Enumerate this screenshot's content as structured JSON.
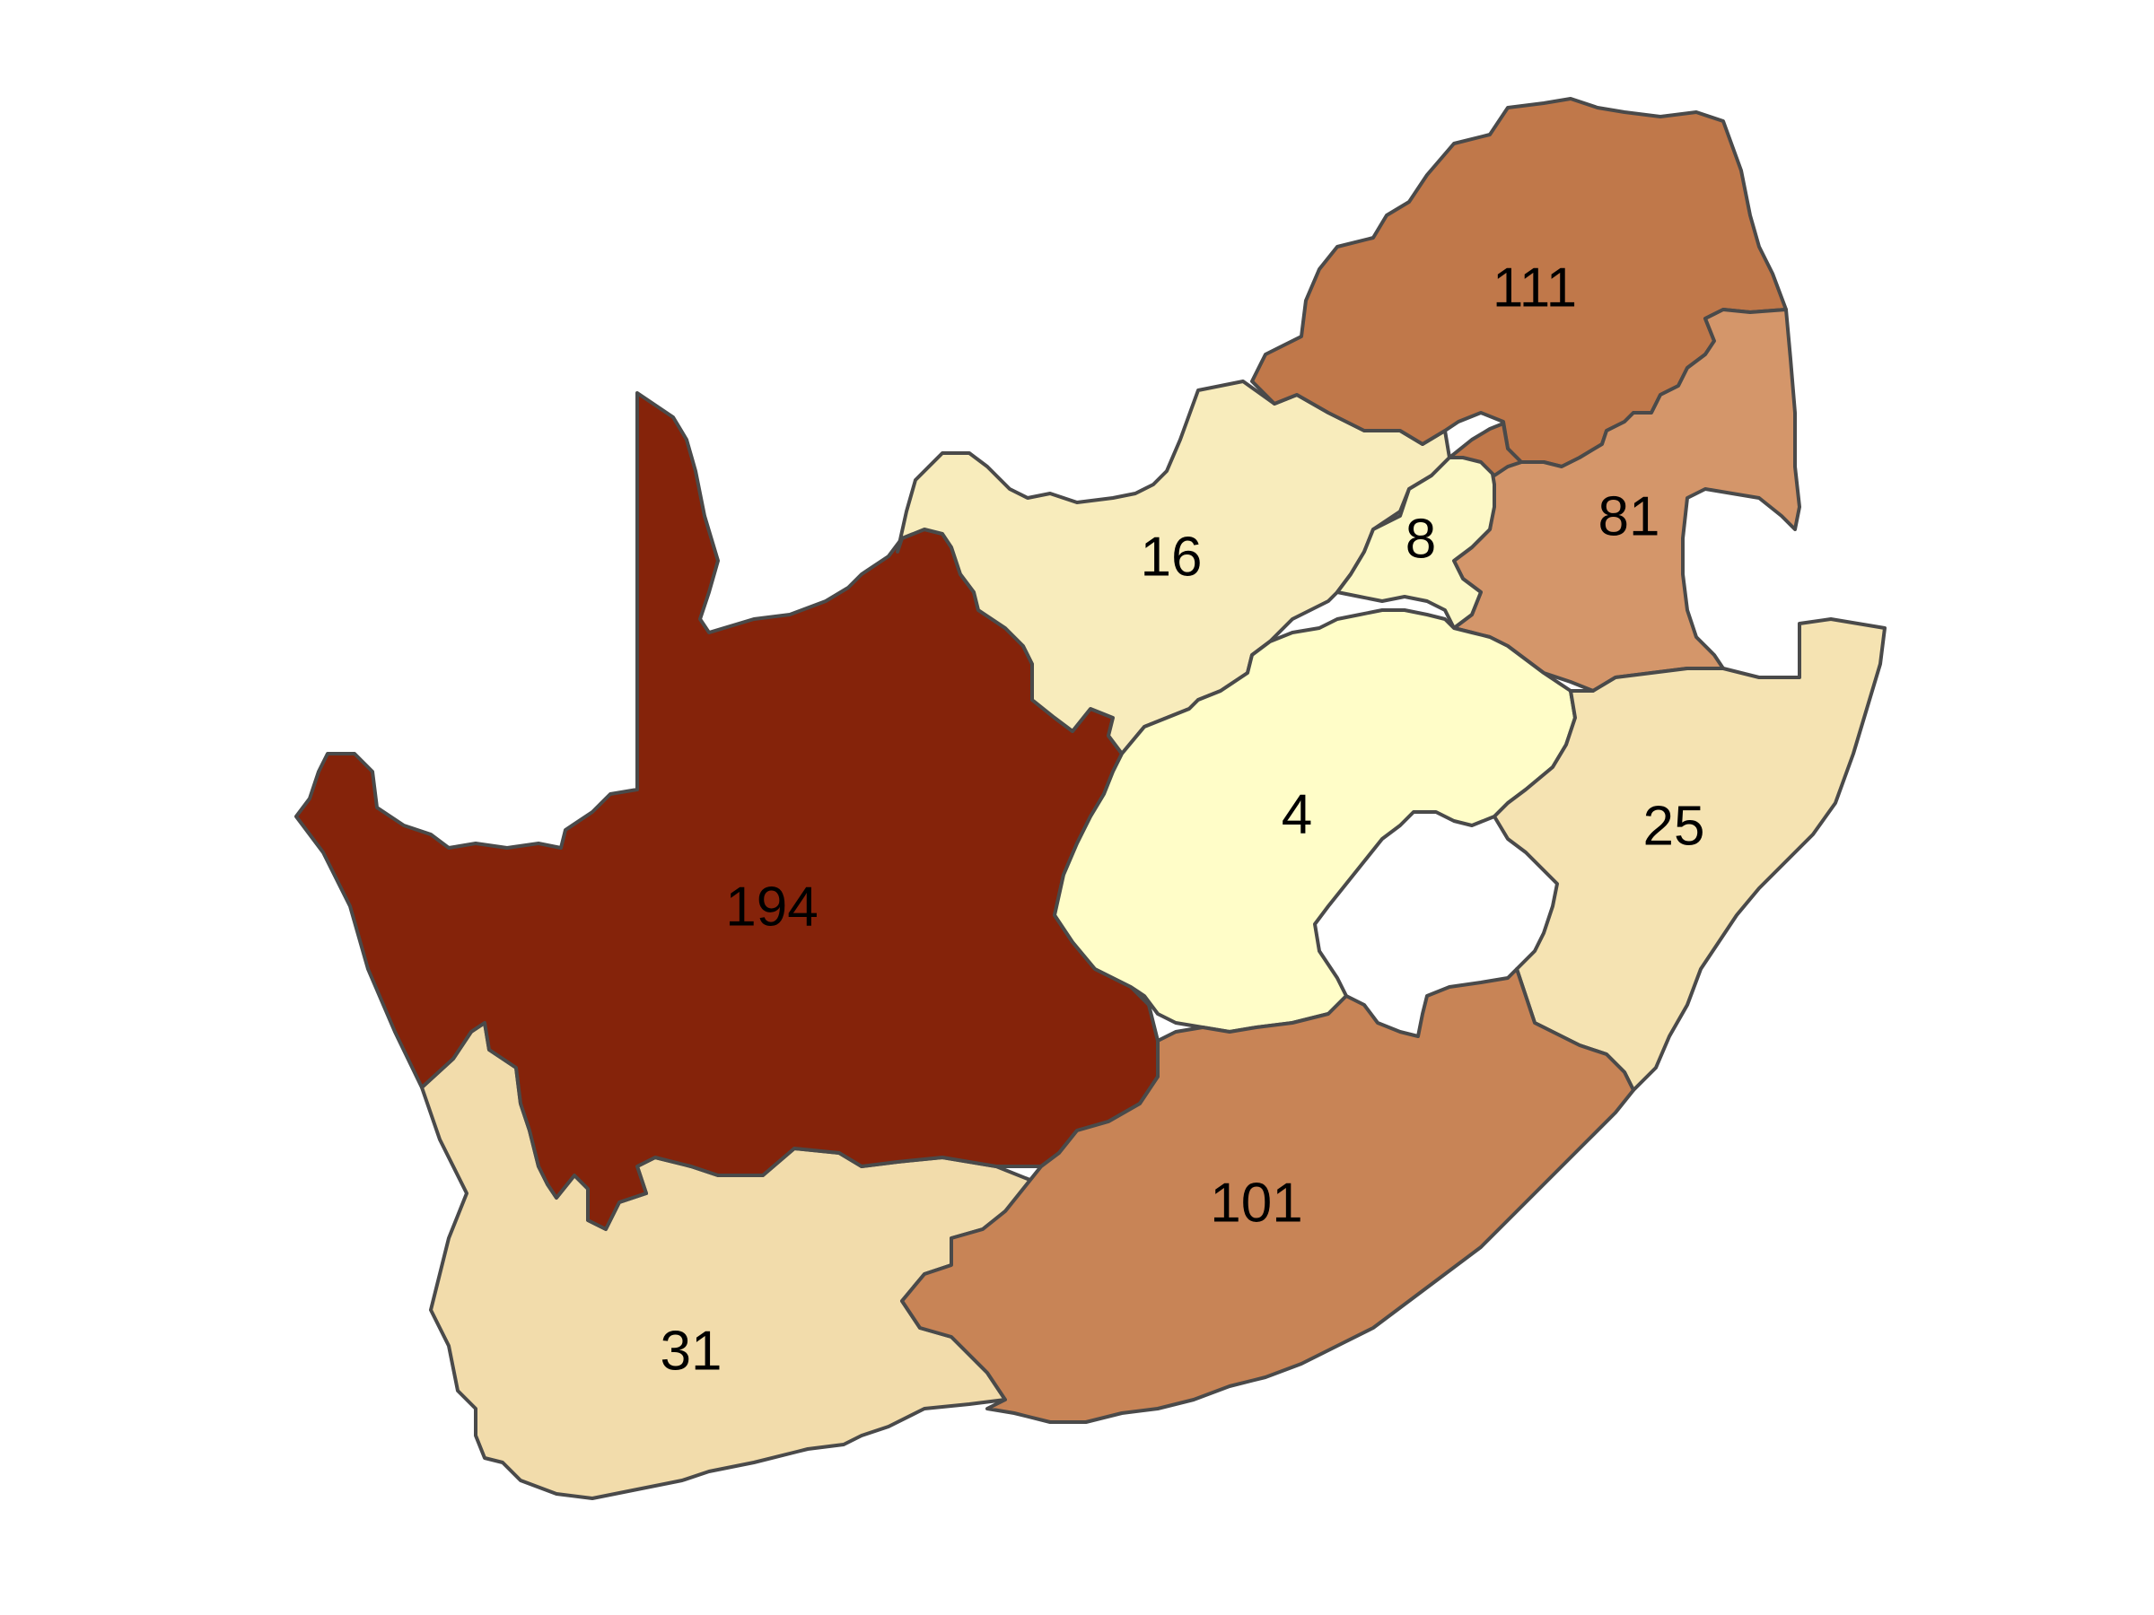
{
  "regions": [
    {
      "id": "northern-cape",
      "value": "194",
      "color": "#85230a"
    },
    {
      "id": "limpopo",
      "value": "111",
      "color": "#c0784a"
    },
    {
      "id": "eastern-cape",
      "value": "101",
      "color": "#c88456"
    },
    {
      "id": "mpumalanga",
      "value": "81",
      "color": "#d4966a"
    },
    {
      "id": "western-cape",
      "value": "31",
      "color": "#f2dcab"
    },
    {
      "id": "kwazulu-natal",
      "value": "25",
      "color": "#f5e3b2"
    },
    {
      "id": "north-west",
      "value": "16",
      "color": "#f8ecbc"
    },
    {
      "id": "gauteng",
      "value": "8",
      "color": "#fcf8c6"
    },
    {
      "id": "free-state",
      "value": "4",
      "color": "#fffdc8"
    }
  ],
  "gauteng_inner_color": "#c0784a"
}
